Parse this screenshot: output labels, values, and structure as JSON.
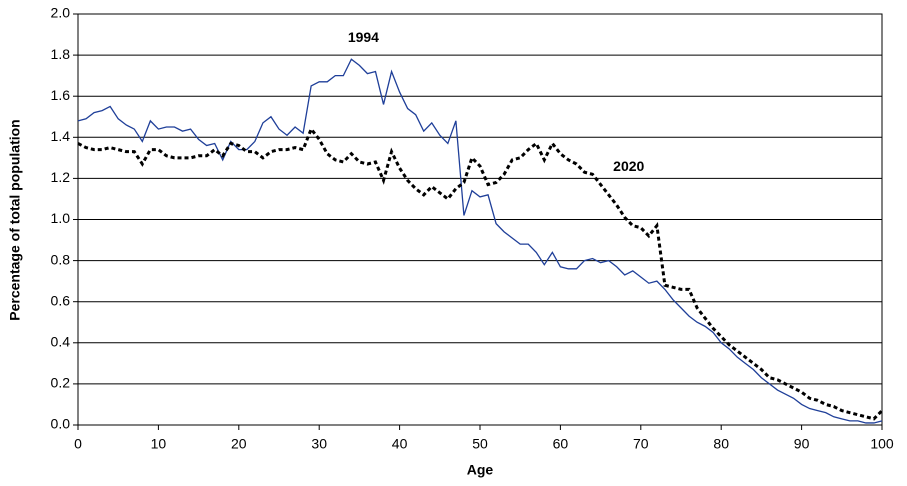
{
  "chart_data": {
    "type": "line",
    "x_label": "Age",
    "y_label": "Percentage of total population",
    "x": [
      0,
      1,
      2,
      3,
      4,
      5,
      6,
      7,
      8,
      9,
      10,
      11,
      12,
      13,
      14,
      15,
      16,
      17,
      18,
      19,
      20,
      21,
      22,
      23,
      24,
      25,
      26,
      27,
      28,
      29,
      30,
      31,
      32,
      33,
      34,
      35,
      36,
      37,
      38,
      39,
      40,
      41,
      42,
      43,
      44,
      45,
      46,
      47,
      48,
      49,
      50,
      51,
      52,
      53,
      54,
      55,
      56,
      57,
      58,
      59,
      60,
      61,
      62,
      63,
      64,
      65,
      66,
      67,
      68,
      69,
      70,
      71,
      72,
      73,
      74,
      75,
      76,
      77,
      78,
      79,
      80,
      81,
      82,
      83,
      84,
      85,
      86,
      87,
      88,
      89,
      90,
      91,
      92,
      93,
      94,
      95,
      96,
      97,
      98,
      99,
      100
    ],
    "series": [
      {
        "name": "1994",
        "color": "#1f3f99",
        "style": "solid",
        "values": [
          1.48,
          1.49,
          1.52,
          1.53,
          1.55,
          1.49,
          1.46,
          1.44,
          1.38,
          1.48,
          1.44,
          1.45,
          1.45,
          1.43,
          1.44,
          1.39,
          1.36,
          1.37,
          1.29,
          1.38,
          1.34,
          1.34,
          1.38,
          1.47,
          1.5,
          1.44,
          1.41,
          1.45,
          1.42,
          1.65,
          1.67,
          1.67,
          1.7,
          1.7,
          1.78,
          1.75,
          1.71,
          1.72,
          1.56,
          1.72,
          1.62,
          1.54,
          1.51,
          1.43,
          1.47,
          1.41,
          1.37,
          1.48,
          1.02,
          1.14,
          1.11,
          1.12,
          0.98,
          0.94,
          0.91,
          0.88,
          0.88,
          0.84,
          0.78,
          0.84,
          0.77,
          0.76,
          0.76,
          0.8,
          0.81,
          0.79,
          0.8,
          0.77,
          0.73,
          0.75,
          0.72,
          0.69,
          0.7,
          0.66,
          0.61,
          0.57,
          0.53,
          0.5,
          0.48,
          0.45,
          0.4,
          0.37,
          0.33,
          0.3,
          0.27,
          0.23,
          0.2,
          0.17,
          0.15,
          0.13,
          0.1,
          0.08,
          0.07,
          0.06,
          0.04,
          0.03,
          0.02,
          0.02,
          0.01,
          0.01,
          0.02
        ]
      },
      {
        "name": "2020",
        "color": "#000000",
        "style": "dotted",
        "values": [
          1.37,
          1.35,
          1.34,
          1.34,
          1.35,
          1.34,
          1.33,
          1.33,
          1.27,
          1.34,
          1.34,
          1.31,
          1.3,
          1.3,
          1.3,
          1.31,
          1.31,
          1.34,
          1.31,
          1.37,
          1.36,
          1.33,
          1.33,
          1.3,
          1.33,
          1.34,
          1.34,
          1.35,
          1.34,
          1.44,
          1.39,
          1.32,
          1.29,
          1.28,
          1.32,
          1.28,
          1.27,
          1.28,
          1.19,
          1.33,
          1.25,
          1.19,
          1.15,
          1.12,
          1.16,
          1.13,
          1.1,
          1.15,
          1.18,
          1.3,
          1.26,
          1.17,
          1.18,
          1.22,
          1.29,
          1.3,
          1.34,
          1.37,
          1.29,
          1.37,
          1.32,
          1.29,
          1.27,
          1.23,
          1.22,
          1.17,
          1.12,
          1.07,
          1.01,
          0.97,
          0.96,
          0.92,
          0.97,
          0.68,
          0.67,
          0.66,
          0.66,
          0.57,
          0.52,
          0.47,
          0.43,
          0.39,
          0.36,
          0.33,
          0.3,
          0.27,
          0.23,
          0.22,
          0.2,
          0.18,
          0.16,
          0.13,
          0.12,
          0.1,
          0.09,
          0.07,
          0.06,
          0.05,
          0.04,
          0.03,
          0.07
        ]
      }
    ],
    "xlim": [
      0,
      100
    ],
    "xticks": [
      0,
      10,
      20,
      30,
      40,
      50,
      60,
      70,
      80,
      90,
      100
    ],
    "ylim": [
      0,
      2
    ],
    "yticks": [
      {
        "value": 0,
        "label": "0.0"
      },
      0.2,
      0.4,
      0.6,
      0.8,
      {
        "value": 1,
        "label": "1.0"
      },
      1.2,
      1.4,
      1.6,
      1.8,
      {
        "value": 2,
        "label": "2.0"
      }
    ],
    "grid": true
  }
}
